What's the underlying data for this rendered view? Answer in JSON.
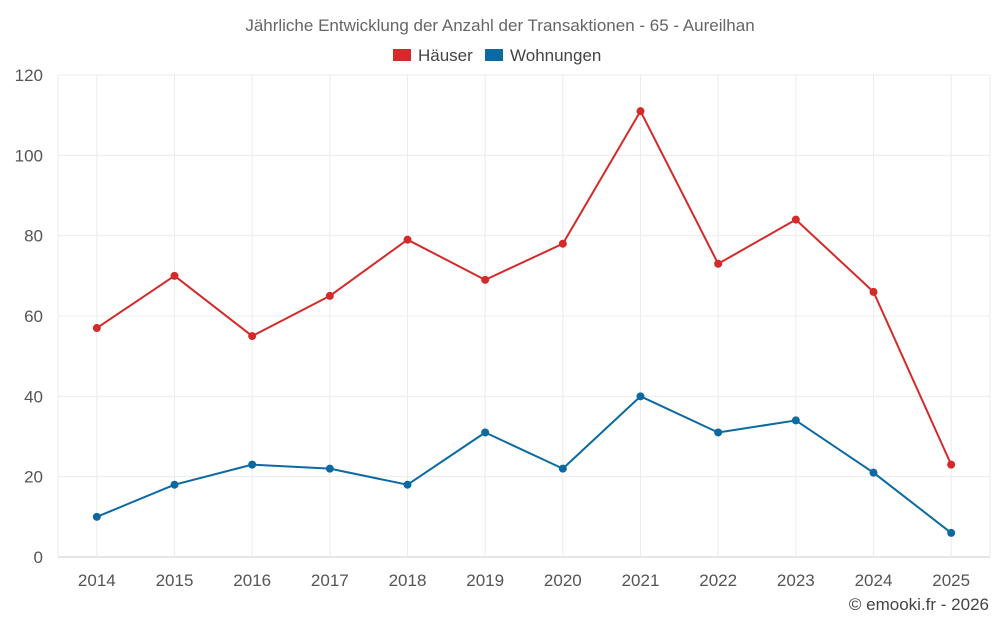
{
  "chart_data": {
    "type": "line",
    "title": "Jährliche Entwicklung der Anzahl der Transaktionen - 65 - Aureilhan",
    "categories": [
      "2014",
      "2015",
      "2016",
      "2017",
      "2018",
      "2019",
      "2020",
      "2021",
      "2022",
      "2023",
      "2024",
      "2025"
    ],
    "series": [
      {
        "name": "Häuser",
        "color": "#d42a2a",
        "values": [
          57,
          70,
          55,
          65,
          79,
          69,
          78,
          111,
          73,
          84,
          66,
          23
        ]
      },
      {
        "name": "Wohnungen",
        "color": "#0b6aa2",
        "values": [
          10,
          18,
          23,
          22,
          18,
          31,
          22,
          40,
          31,
          34,
          21,
          6
        ]
      }
    ],
    "ylim": [
      0,
      120
    ],
    "yticks": [
      0,
      20,
      40,
      60,
      80,
      100,
      120
    ],
    "xlabel": "",
    "ylabel": "",
    "grid": true,
    "legend_position": "top-center"
  },
  "credit": "© emooki.fr - 2026"
}
